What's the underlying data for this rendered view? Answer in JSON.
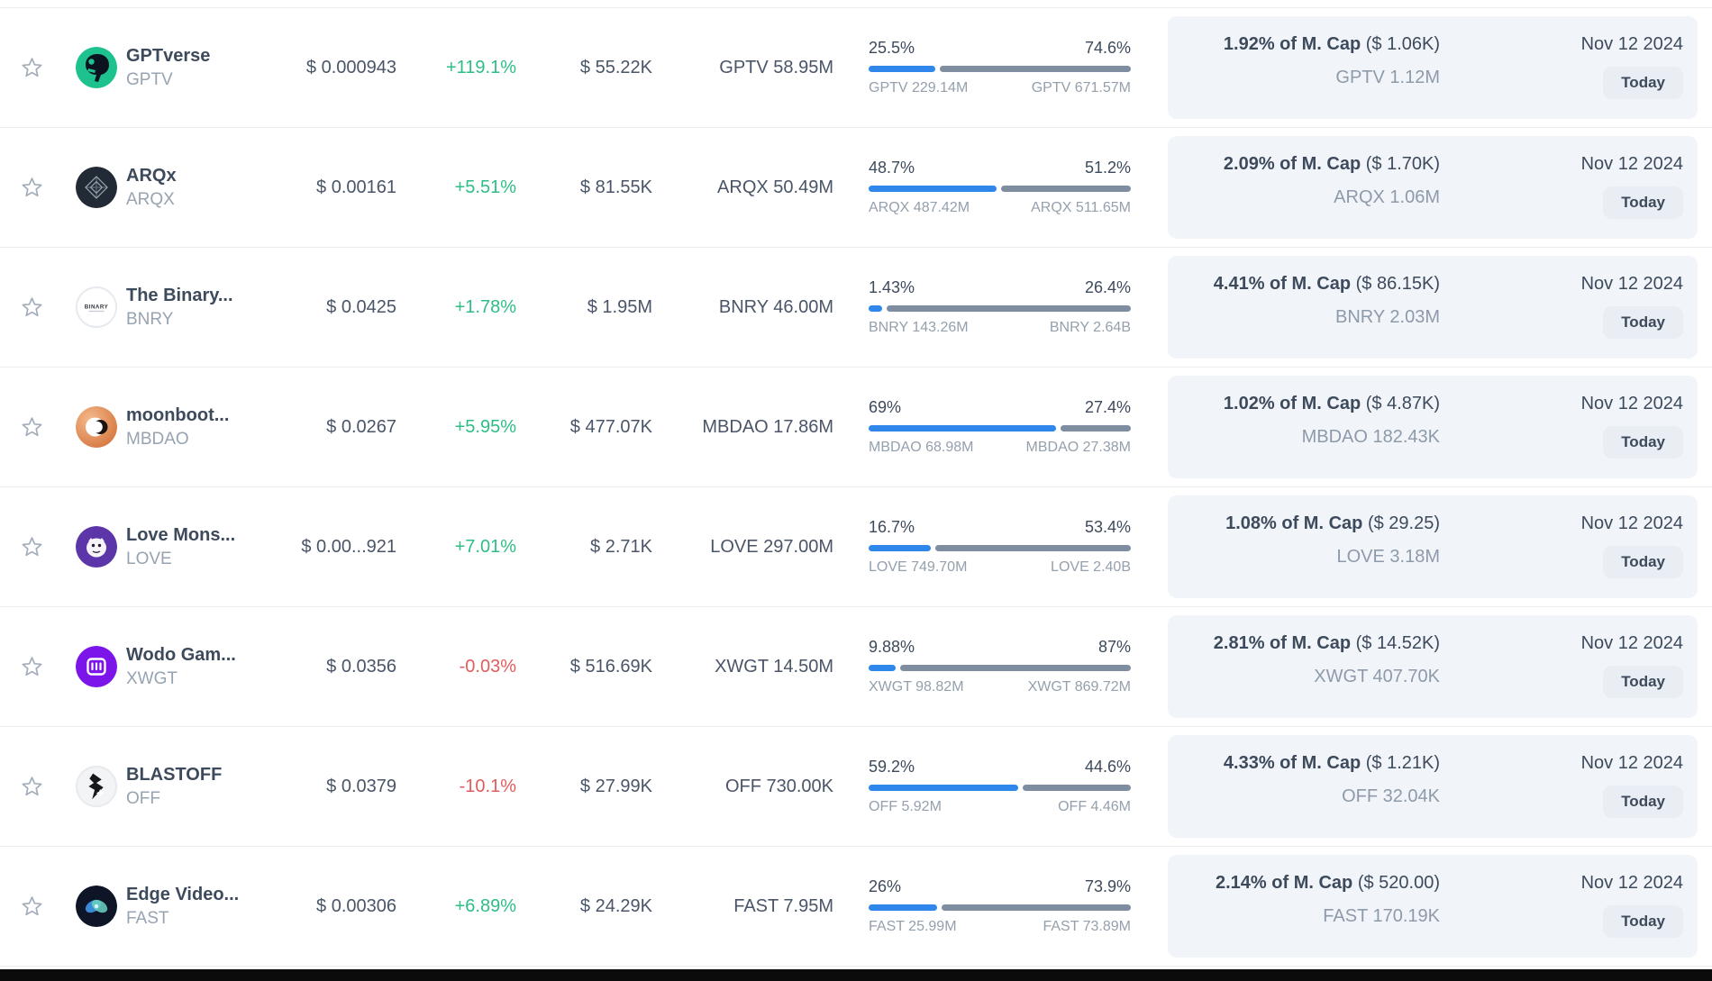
{
  "colors": {
    "accent_blue": "#2f86eb",
    "bar_gray": "#7e8ea0",
    "positive_green": "#2ebd85",
    "negative_red": "#e05c5c",
    "panel_bg": "#f1f5f9"
  },
  "table": {
    "rows": [
      {
        "name": "GPTverse",
        "symbol": "GPTV",
        "price": "$ 0.000943",
        "change": "+119.1%",
        "change_dir": "up",
        "volume": "$ 55.22K",
        "amount": "GPTV 58.95M",
        "bar": {
          "left_pct": "25.5%",
          "right_pct": "74.6%",
          "left_num": 25.5,
          "right_num": 74.6,
          "left_label": "GPTV 229.14M",
          "right_label": "GPTV 671.57M"
        },
        "mcap": {
          "bold": "1.92% of M. Cap",
          "paren": "($ 1.06K)",
          "amount": "GPTV 1.12M"
        },
        "date": "Nov 12 2024",
        "date_badge": "Today",
        "logo": {
          "kind": "gptverse",
          "bg": "#1ec28e"
        }
      },
      {
        "name": "ARQx",
        "symbol": "ARQX",
        "price": "$ 0.00161",
        "change": "+5.51%",
        "change_dir": "up",
        "volume": "$ 81.55K",
        "amount": "ARQX 50.49M",
        "bar": {
          "left_pct": "48.7%",
          "right_pct": "51.2%",
          "left_num": 48.7,
          "right_num": 51.2,
          "left_label": "ARQX 487.42M",
          "right_label": "ARQX 511.65M"
        },
        "mcap": {
          "bold": "2.09% of M. Cap",
          "paren": "($ 1.70K)",
          "amount": "ARQX 1.06M"
        },
        "date": "Nov 12 2024",
        "date_badge": "Today",
        "logo": {
          "kind": "arqx",
          "bg": "#222a35"
        }
      },
      {
        "name": "The Binary...",
        "symbol": "BNRY",
        "price": "$ 0.0425",
        "change": "+1.78%",
        "change_dir": "up",
        "volume": "$ 1.95M",
        "amount": "BNRY 46.00M",
        "bar": {
          "left_pct": "1.43%",
          "right_pct": "26.4%",
          "left_num": 1.43,
          "right_num": 26.4,
          "left_label": "BNRY 143.26M",
          "right_label": "BNRY 2.64B"
        },
        "mcap": {
          "bold": "4.41% of M. Cap",
          "paren": "($ 86.15K)",
          "amount": "BNRY 2.03M"
        },
        "date": "Nov 12 2024",
        "date_badge": "Today",
        "logo": {
          "kind": "bnry",
          "bg": "#ffffff"
        }
      },
      {
        "name": "moonboot...",
        "symbol": "MBDAO",
        "price": "$ 0.0267",
        "change": "+5.95%",
        "change_dir": "up",
        "volume": "$ 477.07K",
        "amount": "MBDAO 17.86M",
        "bar": {
          "left_pct": "69%",
          "right_pct": "27.4%",
          "left_num": 69,
          "right_num": 27.4,
          "left_label": "MBDAO 68.98M",
          "right_label": "MBDAO 27.38M"
        },
        "mcap": {
          "bold": "1.02% of M. Cap",
          "paren": "($ 4.87K)",
          "amount": "MBDAO 182.43K"
        },
        "date": "Nov 12 2024",
        "date_badge": "Today",
        "logo": {
          "kind": "mbdao",
          "bg": "#e08a52"
        }
      },
      {
        "name": "Love Mons...",
        "symbol": "LOVE",
        "price": "$ 0.00...921",
        "change": "+7.01%",
        "change_dir": "up",
        "volume": "$ 2.71K",
        "amount": "LOVE 297.00M",
        "bar": {
          "left_pct": "16.7%",
          "right_pct": "53.4%",
          "left_num": 16.7,
          "right_num": 53.4,
          "left_label": "LOVE 749.70M",
          "right_label": "LOVE 2.40B"
        },
        "mcap": {
          "bold": "1.08% of M. Cap",
          "paren": "($ 29.25)",
          "amount": "LOVE 3.18M"
        },
        "date": "Nov 12 2024",
        "date_badge": "Today",
        "logo": {
          "kind": "love",
          "bg": "#5c35a9"
        }
      },
      {
        "name": "Wodo Gam...",
        "symbol": "XWGT",
        "price": "$ 0.0356",
        "change": "-0.03%",
        "change_dir": "down",
        "volume": "$ 516.69K",
        "amount": "XWGT 14.50M",
        "bar": {
          "left_pct": "9.88%",
          "right_pct": "87%",
          "left_num": 9.88,
          "right_num": 87,
          "left_label": "XWGT 98.82M",
          "right_label": "XWGT 869.72M"
        },
        "mcap": {
          "bold": "2.81% of M. Cap",
          "paren": "($ 14.52K)",
          "amount": "XWGT 407.70K"
        },
        "date": "Nov 12 2024",
        "date_badge": "Today",
        "logo": {
          "kind": "xwgt",
          "bg": "#7b15e9"
        }
      },
      {
        "name": "BLASTOFF",
        "symbol": "OFF",
        "price": "$ 0.0379",
        "change": "-10.1%",
        "change_dir": "down",
        "volume": "$ 27.99K",
        "amount": "OFF 730.00K",
        "bar": {
          "left_pct": "59.2%",
          "right_pct": "44.6%",
          "left_num": 59.2,
          "right_num": 44.6,
          "left_label": "OFF 5.92M",
          "right_label": "OFF 4.46M"
        },
        "mcap": {
          "bold": "4.33% of M. Cap",
          "paren": "($ 1.21K)",
          "amount": "OFF 32.04K"
        },
        "date": "Nov 12 2024",
        "date_badge": "Today",
        "logo": {
          "kind": "off",
          "bg": "#f3f4f6"
        }
      },
      {
        "name": "Edge Video...",
        "symbol": "FAST",
        "price": "$ 0.00306",
        "change": "+6.89%",
        "change_dir": "up",
        "volume": "$ 24.29K",
        "amount": "FAST 7.95M",
        "bar": {
          "left_pct": "26%",
          "right_pct": "73.9%",
          "left_num": 26,
          "right_num": 73.9,
          "left_label": "FAST 25.99M",
          "right_label": "FAST 73.89M"
        },
        "mcap": {
          "bold": "2.14% of M. Cap",
          "paren": "($ 520.00)",
          "amount": "FAST 170.19K"
        },
        "date": "Nov 12 2024",
        "date_badge": "Today",
        "logo": {
          "kind": "fast",
          "bg": "#0e1526"
        }
      }
    ]
  }
}
